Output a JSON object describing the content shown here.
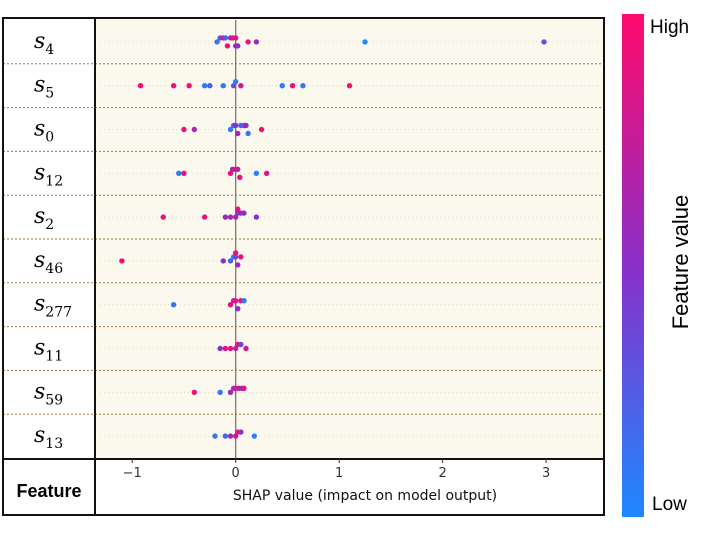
{
  "chart_data": {
    "type": "scatter",
    "subtype": "shap-beeswarm",
    "xlabel": "SHAP value (impact on model output)",
    "xlim": [
      -1.35,
      3.55
    ],
    "x_ticks": [
      -1,
      0,
      1,
      2,
      3
    ],
    "x_tick_labels": [
      "−1",
      "0",
      "1",
      "2",
      "3"
    ],
    "header_label": "Feature",
    "colorbar": {
      "title": "Feature value",
      "high_label": "High",
      "low_label": "Low",
      "high_color": "#ff0a6c",
      "mid_color": "#8a2fc8",
      "low_color": "#1e88ff"
    },
    "features": [
      {
        "base": "s",
        "sub": "4",
        "points": [
          [
            -0.18,
            0.1
          ],
          [
            -0.15,
            0.3
          ],
          [
            -0.12,
            0.8
          ],
          [
            -0.1,
            0.2
          ],
          [
            -0.08,
            0.95
          ],
          [
            -0.05,
            0.4
          ],
          [
            -0.03,
            0.9
          ],
          [
            0.0,
            0.85
          ],
          [
            0.0,
            0.6
          ],
          [
            0.02,
            0.5
          ],
          [
            0.12,
            0.9
          ],
          [
            0.2,
            0.5
          ],
          [
            1.25,
            0.0
          ],
          [
            2.98,
            0.3
          ]
        ]
      },
      {
        "base": "s",
        "sub": "5",
        "points": [
          [
            -0.92,
            0.95
          ],
          [
            -0.6,
            0.9
          ],
          [
            -0.45,
            0.9
          ],
          [
            -0.3,
            0.1
          ],
          [
            -0.25,
            0.2
          ],
          [
            -0.12,
            0.1
          ],
          [
            -0.02,
            0.3
          ],
          [
            0.0,
            0.05
          ],
          [
            0.05,
            0.8
          ],
          [
            0.45,
            0.05
          ],
          [
            0.55,
            0.9
          ],
          [
            0.65,
            0.1
          ],
          [
            1.1,
            0.95
          ]
        ]
      },
      {
        "base": "s",
        "sub": "0",
        "points": [
          [
            -0.5,
            0.9
          ],
          [
            -0.4,
            0.6
          ],
          [
            -0.05,
            0.1
          ],
          [
            -0.02,
            0.2
          ],
          [
            0.0,
            0.5
          ],
          [
            0.02,
            0.6
          ],
          [
            0.05,
            0.2
          ],
          [
            0.08,
            0.3
          ],
          [
            0.1,
            0.5
          ],
          [
            0.12,
            0.1
          ],
          [
            0.25,
            0.95
          ]
        ]
      },
      {
        "base": "s",
        "sub": "12",
        "points": [
          [
            -0.55,
            0.1
          ],
          [
            -0.5,
            0.9
          ],
          [
            -0.05,
            0.9
          ],
          [
            -0.03,
            0.6
          ],
          [
            0.0,
            0.95
          ],
          [
            0.02,
            0.7
          ],
          [
            0.04,
            0.9
          ],
          [
            0.2,
            0.05
          ],
          [
            0.3,
            0.85
          ]
        ]
      },
      {
        "base": "s",
        "sub": "2",
        "points": [
          [
            -0.7,
            0.95
          ],
          [
            -0.3,
            0.9
          ],
          [
            -0.1,
            0.5
          ],
          [
            -0.05,
            0.6
          ],
          [
            0.0,
            0.7
          ],
          [
            0.02,
            0.4
          ],
          [
            0.05,
            0.6
          ],
          [
            0.08,
            0.5
          ],
          [
            0.2,
            0.5
          ],
          [
            0.02,
            0.9
          ]
        ]
      },
      {
        "base": "s",
        "sub": "46",
        "points": [
          [
            -1.1,
            0.95
          ],
          [
            -0.12,
            0.5
          ],
          [
            -0.05,
            0.2
          ],
          [
            -0.02,
            0.1
          ],
          [
            0.0,
            0.3
          ],
          [
            0.02,
            0.6
          ],
          [
            0.05,
            0.9
          ],
          [
            0.0,
            0.9
          ]
        ]
      },
      {
        "base": "s",
        "sub": "277",
        "points": [
          [
            -0.6,
            0.1
          ],
          [
            -0.05,
            0.9
          ],
          [
            -0.02,
            0.7
          ],
          [
            0.0,
            0.9
          ],
          [
            0.02,
            0.5
          ],
          [
            0.05,
            0.9
          ],
          [
            0.08,
            0.1
          ]
        ]
      },
      {
        "base": "s",
        "sub": "11",
        "points": [
          [
            -0.15,
            0.5
          ],
          [
            -0.1,
            0.8
          ],
          [
            -0.05,
            0.9
          ],
          [
            0.0,
            0.6
          ],
          [
            0.02,
            0.9
          ],
          [
            0.05,
            0.4
          ],
          [
            0.1,
            0.8
          ]
        ]
      },
      {
        "base": "s",
        "sub": "59",
        "points": [
          [
            -0.4,
            0.95
          ],
          [
            -0.15,
            0.1
          ],
          [
            -0.05,
            0.6
          ],
          [
            -0.02,
            0.4
          ],
          [
            0.0,
            0.9
          ],
          [
            0.03,
            0.7
          ],
          [
            0.06,
            0.5
          ],
          [
            0.08,
            0.9
          ]
        ]
      },
      {
        "base": "s",
        "sub": "13",
        "points": [
          [
            -0.2,
            0.1
          ],
          [
            -0.1,
            0.2
          ],
          [
            -0.05,
            0.6
          ],
          [
            0.0,
            0.8
          ],
          [
            0.02,
            0.9
          ],
          [
            0.05,
            0.5
          ],
          [
            0.18,
            0.05
          ]
        ]
      }
    ]
  }
}
